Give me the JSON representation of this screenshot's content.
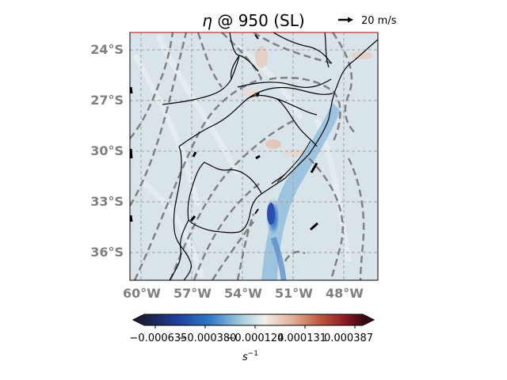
{
  "map": {
    "title_symbol": "η",
    "title_rest": " @ 950 (SL)",
    "reference_vector_label": "20 m/s",
    "lat_ticks": [
      "24°S",
      "27°S",
      "30°S",
      "33°S",
      "36°S"
    ],
    "lon_ticks": [
      "60°W",
      "57°W",
      "54°W",
      "51°W",
      "48°W"
    ],
    "colorbar": {
      "tick_labels": [
        "−0.000635",
        "−0.000380",
        "−0.000124",
        "0.000131",
        "0.000387"
      ],
      "unit_base": "s",
      "unit_exp": "−1",
      "colors": [
        "#1b1d3c",
        "#1f3f9a",
        "#2f78c4",
        "#7fb6d8",
        "#d0e4ec",
        "#f2efec",
        "#e4bca4",
        "#c46a48",
        "#951c24",
        "#3a0a12"
      ]
    },
    "colors": {
      "land_outline": "#000000",
      "contour": "#808080",
      "grid": "#a0a0a0",
      "background_field": "#d9e5ea"
    }
  }
}
